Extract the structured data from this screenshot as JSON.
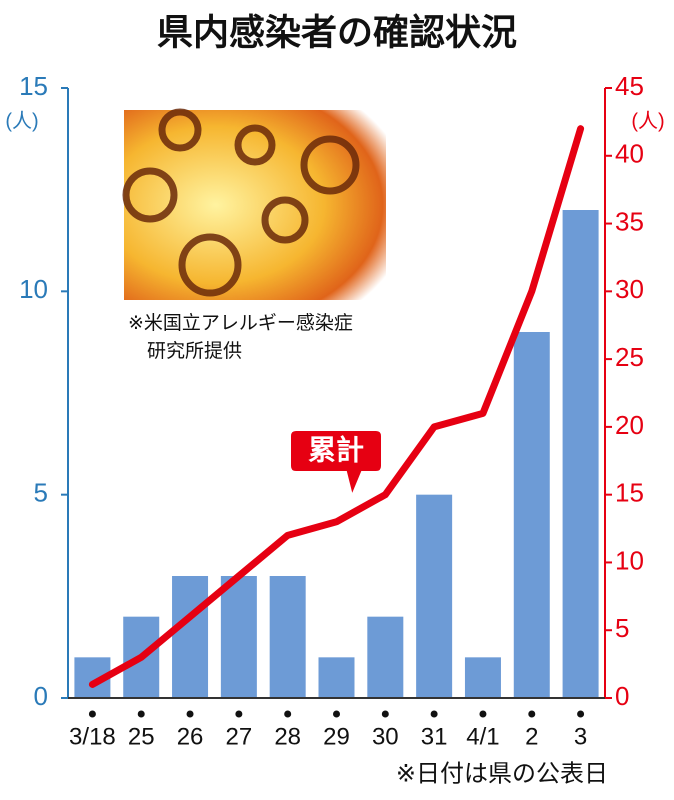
{
  "chart_data": {
    "type": "bar",
    "title": "県内感染者の確認状況",
    "categories": [
      "3/18",
      "25",
      "26",
      "27",
      "28",
      "29",
      "30",
      "31",
      "4/1",
      "2",
      "3"
    ],
    "series": [
      {
        "color": "#6d9bd6",
        "values": [
          1,
          2,
          3,
          3,
          3,
          1,
          2,
          5,
          1,
          9,
          12
        ]
      },
      {
        "name": "累計",
        "type": "line",
        "axis": "y2",
        "color": "#e60012",
        "values": [
          1,
          3,
          6,
          9,
          12,
          13,
          15,
          20,
          21,
          30,
          42
        ]
      }
    ],
    "ylabel": "(人)",
    "y2label": "(人)",
    "ylim": [
      0,
      15
    ],
    "yticks": [
      0,
      5,
      10,
      15
    ],
    "y2lim": [
      0,
      45
    ],
    "y2ticks": [
      0,
      5,
      10,
      15,
      20,
      25,
      30,
      35,
      40,
      45
    ],
    "caption": [
      "※米国立アレルギー感染症",
      "研究所提供"
    ],
    "note": "※日付は県の公表日"
  }
}
